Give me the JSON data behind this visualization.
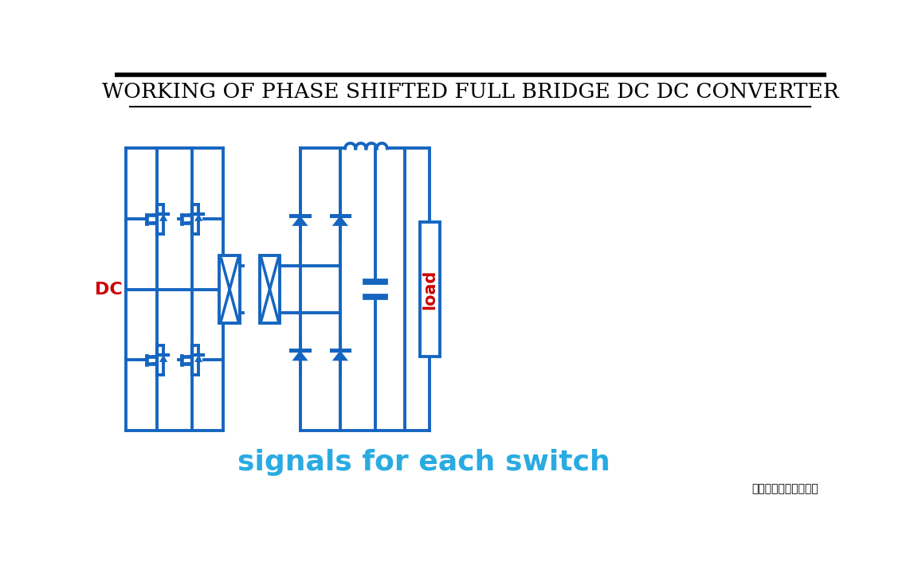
{
  "title": "WORKING OF PHASE SHIFTED FULL BRIDGE DC DC CONVERTER",
  "title_fontsize": 19,
  "circuit_color": "#1565C0",
  "red_color": "#CC0000",
  "subtitle_color": "#29ABE2",
  "subtitle_text": "signals for each switch",
  "subtitle_fontsize": 26,
  "watermark": "电力电子技术与新能源",
  "dc_label": "DC",
  "load_label": "load",
  "bg_color": "#FFFFFF",
  "line_width": 2.8
}
